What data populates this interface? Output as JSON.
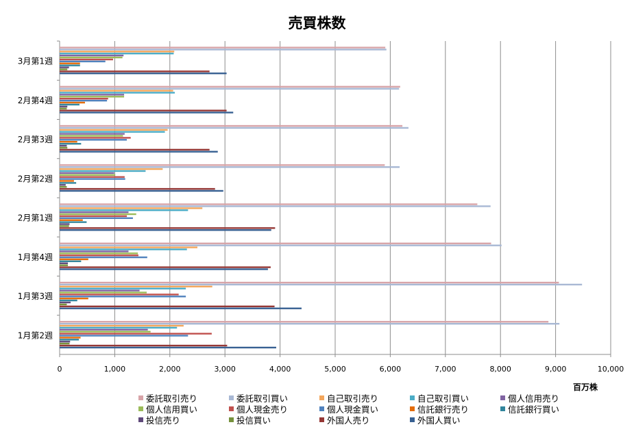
{
  "chart_data": {
    "type": "bar",
    "orientation": "horizontal",
    "title": "売買株数",
    "xlabel": "百万株",
    "ylabel": "",
    "xlim": [
      0,
      10000
    ],
    "x_ticks": [
      "0",
      "1,000",
      "2,000",
      "3,000",
      "4,000",
      "5,000",
      "6,000",
      "7,000",
      "8,000",
      "9,000",
      "10,000"
    ],
    "grid": true,
    "legend_position": "bottom",
    "categories": [
      "1月第2週",
      "1月第3週",
      "1月第4週",
      "2月第1週",
      "2月第2週",
      "2月第3週",
      "2月第4週",
      "3月第1週"
    ],
    "series": [
      {
        "name": "委託取引売り",
        "color": "#d8a4a8",
        "values": [
          8870,
          9060,
          7830,
          7580,
          5900,
          6220,
          6180,
          5910
        ]
      },
      {
        "name": "委託取引買い",
        "color": "#a8b8d4",
        "values": [
          9070,
          9480,
          8020,
          7820,
          6170,
          6330,
          6160,
          5930
        ]
      },
      {
        "name": "自己取引売り",
        "color": "#f3a65c",
        "values": [
          2250,
          2770,
          2500,
          2590,
          1870,
          1960,
          2060,
          2080
        ]
      },
      {
        "name": "自己取引買い",
        "color": "#4bacc6",
        "values": [
          2130,
          2290,
          2310,
          2330,
          1560,
          1910,
          2090,
          2070
        ]
      },
      {
        "name": "個人信用売り",
        "color": "#8064a2",
        "values": [
          1600,
          1450,
          1250,
          1250,
          990,
          1180,
          1170,
          1160
        ]
      },
      {
        "name": "個人信用買い",
        "color": "#9bbb59",
        "values": [
          1650,
          1580,
          1420,
          1390,
          1010,
          1150,
          1170,
          1140
        ]
      },
      {
        "name": "個人現金売り",
        "color": "#c0504d",
        "values": [
          2760,
          2160,
          1430,
          1220,
          1180,
          1290,
          880,
          970
        ]
      },
      {
        "name": "個人現金買い",
        "color": "#4f81bd",
        "values": [
          2330,
          2290,
          1590,
          1330,
          1190,
          1220,
          860,
          830
        ]
      },
      {
        "name": "信託銀行売り",
        "color": "#e46c0a",
        "values": [
          380,
          520,
          520,
          420,
          260,
          320,
          460,
          370
        ]
      },
      {
        "name": "信託銀行買い",
        "color": "#31859c",
        "values": [
          350,
          320,
          390,
          490,
          300,
          390,
          360,
          370
        ]
      },
      {
        "name": "投信売り",
        "color": "#5f497a",
        "values": [
          190,
          200,
          150,
          180,
          110,
          130,
          140,
          170
        ]
      },
      {
        "name": "投信買い",
        "color": "#76923c",
        "values": [
          180,
          130,
          150,
          170,
          130,
          140,
          130,
          140
        ]
      },
      {
        "name": "外国人売り",
        "color": "#953735",
        "values": [
          3040,
          3900,
          3830,
          3910,
          2820,
          2720,
          3030,
          2720
        ]
      },
      {
        "name": "外国人買い",
        "color": "#376092",
        "values": [
          3930,
          4390,
          3780,
          3840,
          2970,
          2870,
          3150,
          3030
        ]
      }
    ]
  }
}
